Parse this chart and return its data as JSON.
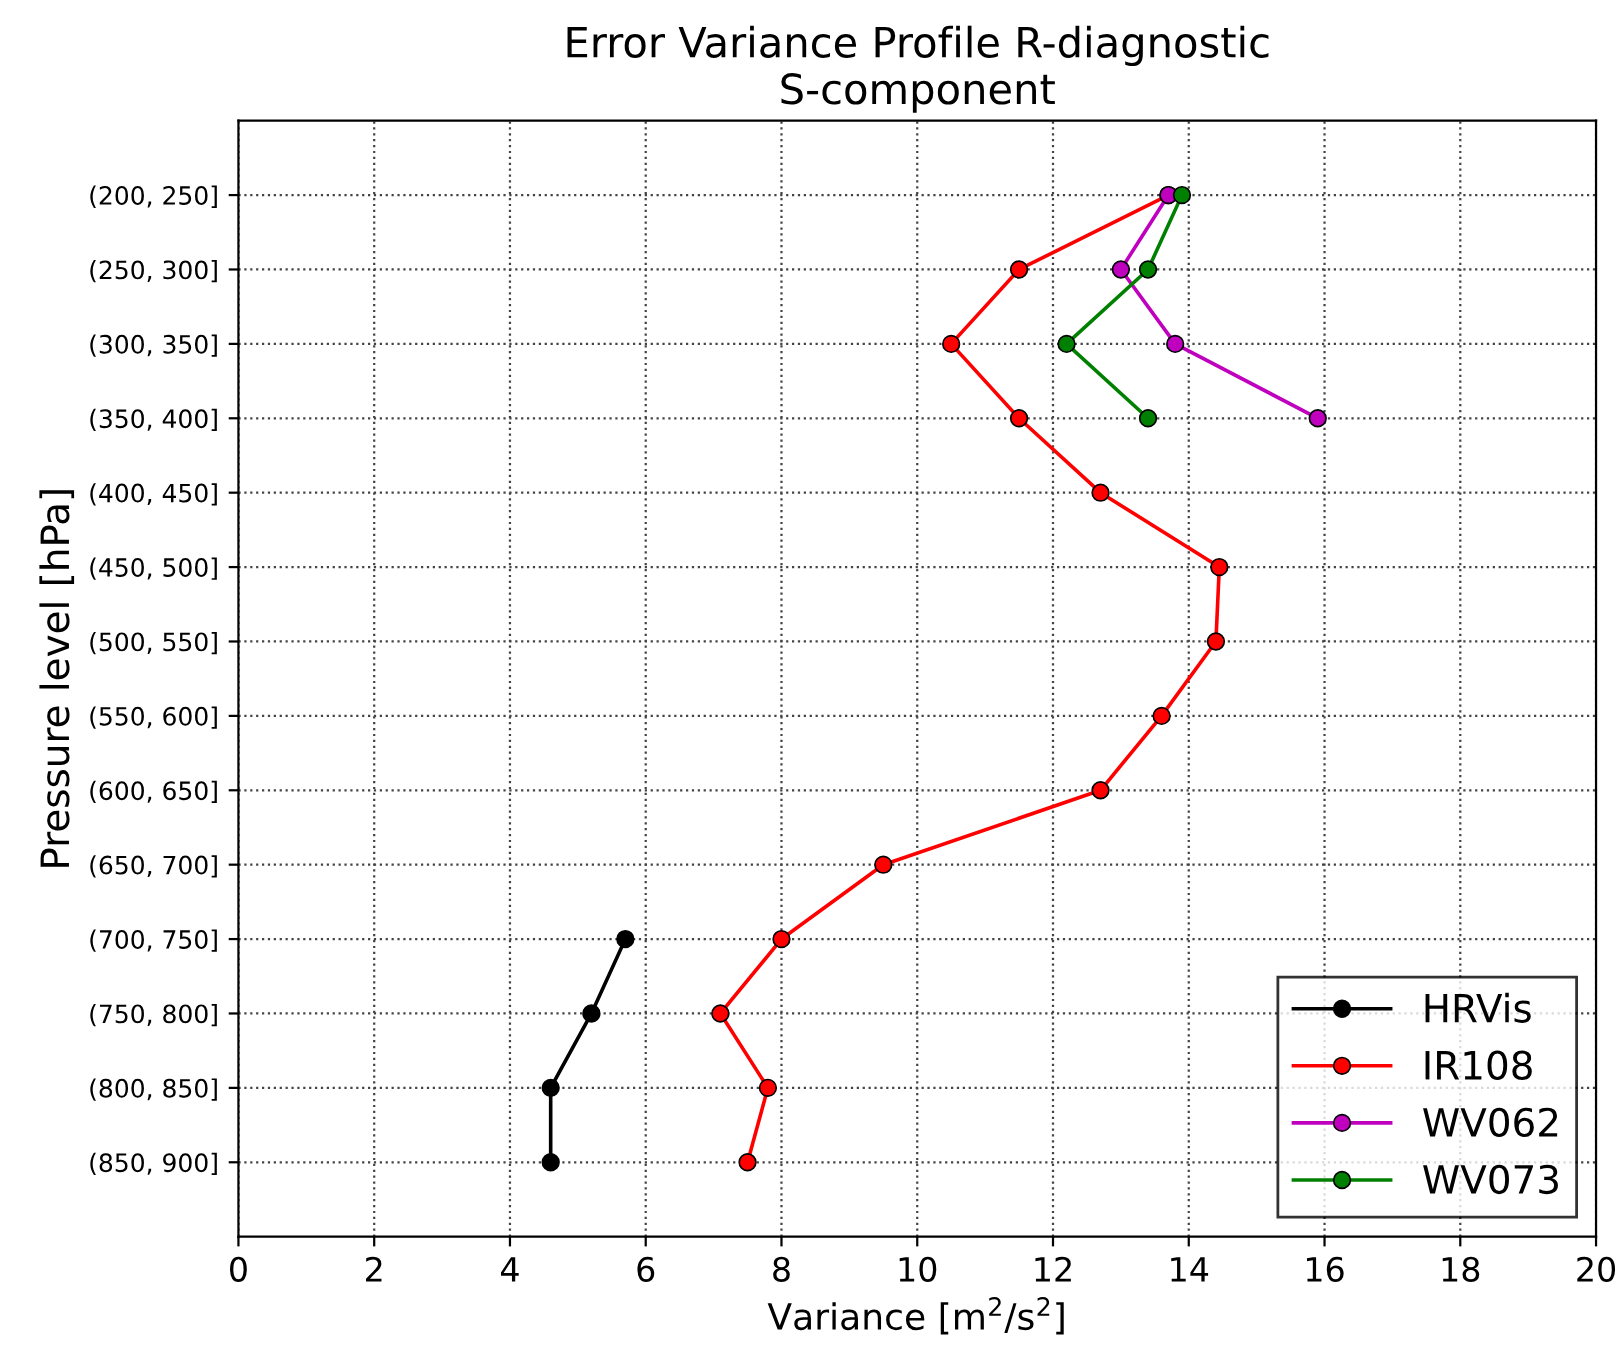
{
  "chart_data": {
    "type": "line",
    "orientation": "horizontal",
    "title": "Error Variance Profile R-diagnostic\nS-component",
    "xlabel": "Variance [m$^{2}$/s$^{2}$]",
    "ylabel": "Pressure level [hPa]",
    "categories": [
      "(200, 250]",
      "(250, 300]",
      "(300, 350]",
      "(350, 400]",
      "(400, 450]",
      "(450, 500]",
      "(500, 550]",
      "(550, 600]",
      "(600, 650]",
      "(650, 700]",
      "(700, 750]",
      "(750, 800]",
      "(800, 850]",
      "(850, 900]"
    ],
    "series": [
      {
        "name": "HRVis",
        "color": "#000000",
        "values": [
          null,
          null,
          null,
          null,
          null,
          null,
          null,
          null,
          null,
          null,
          5.7,
          5.2,
          4.6,
          4.6
        ]
      },
      {
        "name": "IR108",
        "color": "#ff0000",
        "values": [
          13.7,
          11.5,
          10.5,
          11.5,
          12.7,
          14.45,
          14.4,
          13.6,
          12.7,
          9.5,
          8.0,
          7.1,
          7.8,
          7.5
        ]
      },
      {
        "name": "WV062",
        "color": "#bf00bf",
        "values": [
          13.7,
          13.0,
          13.8,
          15.9,
          null,
          null,
          null,
          null,
          null,
          null,
          null,
          null,
          null,
          null
        ]
      },
      {
        "name": "WV073",
        "color": "#008000",
        "values": [
          13.9,
          13.4,
          12.2,
          13.4,
          null,
          null,
          null,
          null,
          null,
          null,
          null,
          null,
          null,
          null
        ]
      }
    ],
    "xlim": [
      0,
      20
    ],
    "xticks": [
      0,
      2,
      4,
      6,
      8,
      10,
      12,
      14,
      16,
      18,
      20
    ],
    "grid": true,
    "legend": "bottom right",
    "marker": "circle",
    "line_style": "solid"
  }
}
